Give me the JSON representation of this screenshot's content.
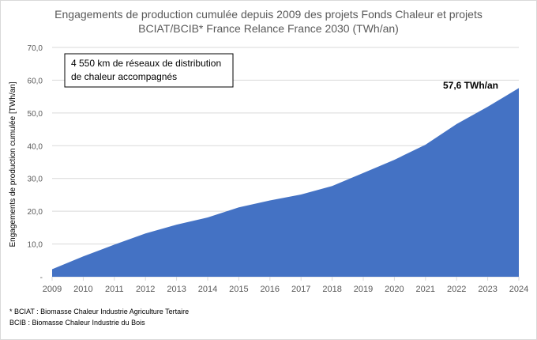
{
  "chart_data": {
    "type": "area",
    "title_line1": "Engagements de production cumulée depuis 2009 des projets Fonds Chaleur et projets",
    "title_line2": "BCIAT/BCIB* France Relance France 2030 (TWh/an)",
    "ylabel": "Engagements de production cumulée [TWh/an]",
    "xlabel": "",
    "ylim": [
      0,
      70
    ],
    "yticks": [
      "-",
      "10,0",
      "20,0",
      "30,0",
      "40,0",
      "50,0",
      "60,0",
      "70,0"
    ],
    "grid": true,
    "color": "#4472C4",
    "x": [
      "2009",
      "2010",
      "2011",
      "2012",
      "2013",
      "2014",
      "2015",
      "2016",
      "2017",
      "2018",
      "2019",
      "2020",
      "2021",
      "2022",
      "2023",
      "2024"
    ],
    "values": [
      2.3,
      6.2,
      9.8,
      13.2,
      15.9,
      18.1,
      21.2,
      23.3,
      25.1,
      27.7,
      31.7,
      35.7,
      40.3,
      46.6,
      51.9,
      57.6
    ],
    "data_label": "57,6 TWh/an",
    "annotation_box": [
      "4 550 km de réseaux de distribution",
      "de chaleur accompagnés"
    ],
    "footnotes": [
      "* BCIAT : Biomasse Chaleur Industrie Agriculture Tertaire",
      "BCIB : Biomasse Chaleur Industrie du Bois"
    ]
  }
}
